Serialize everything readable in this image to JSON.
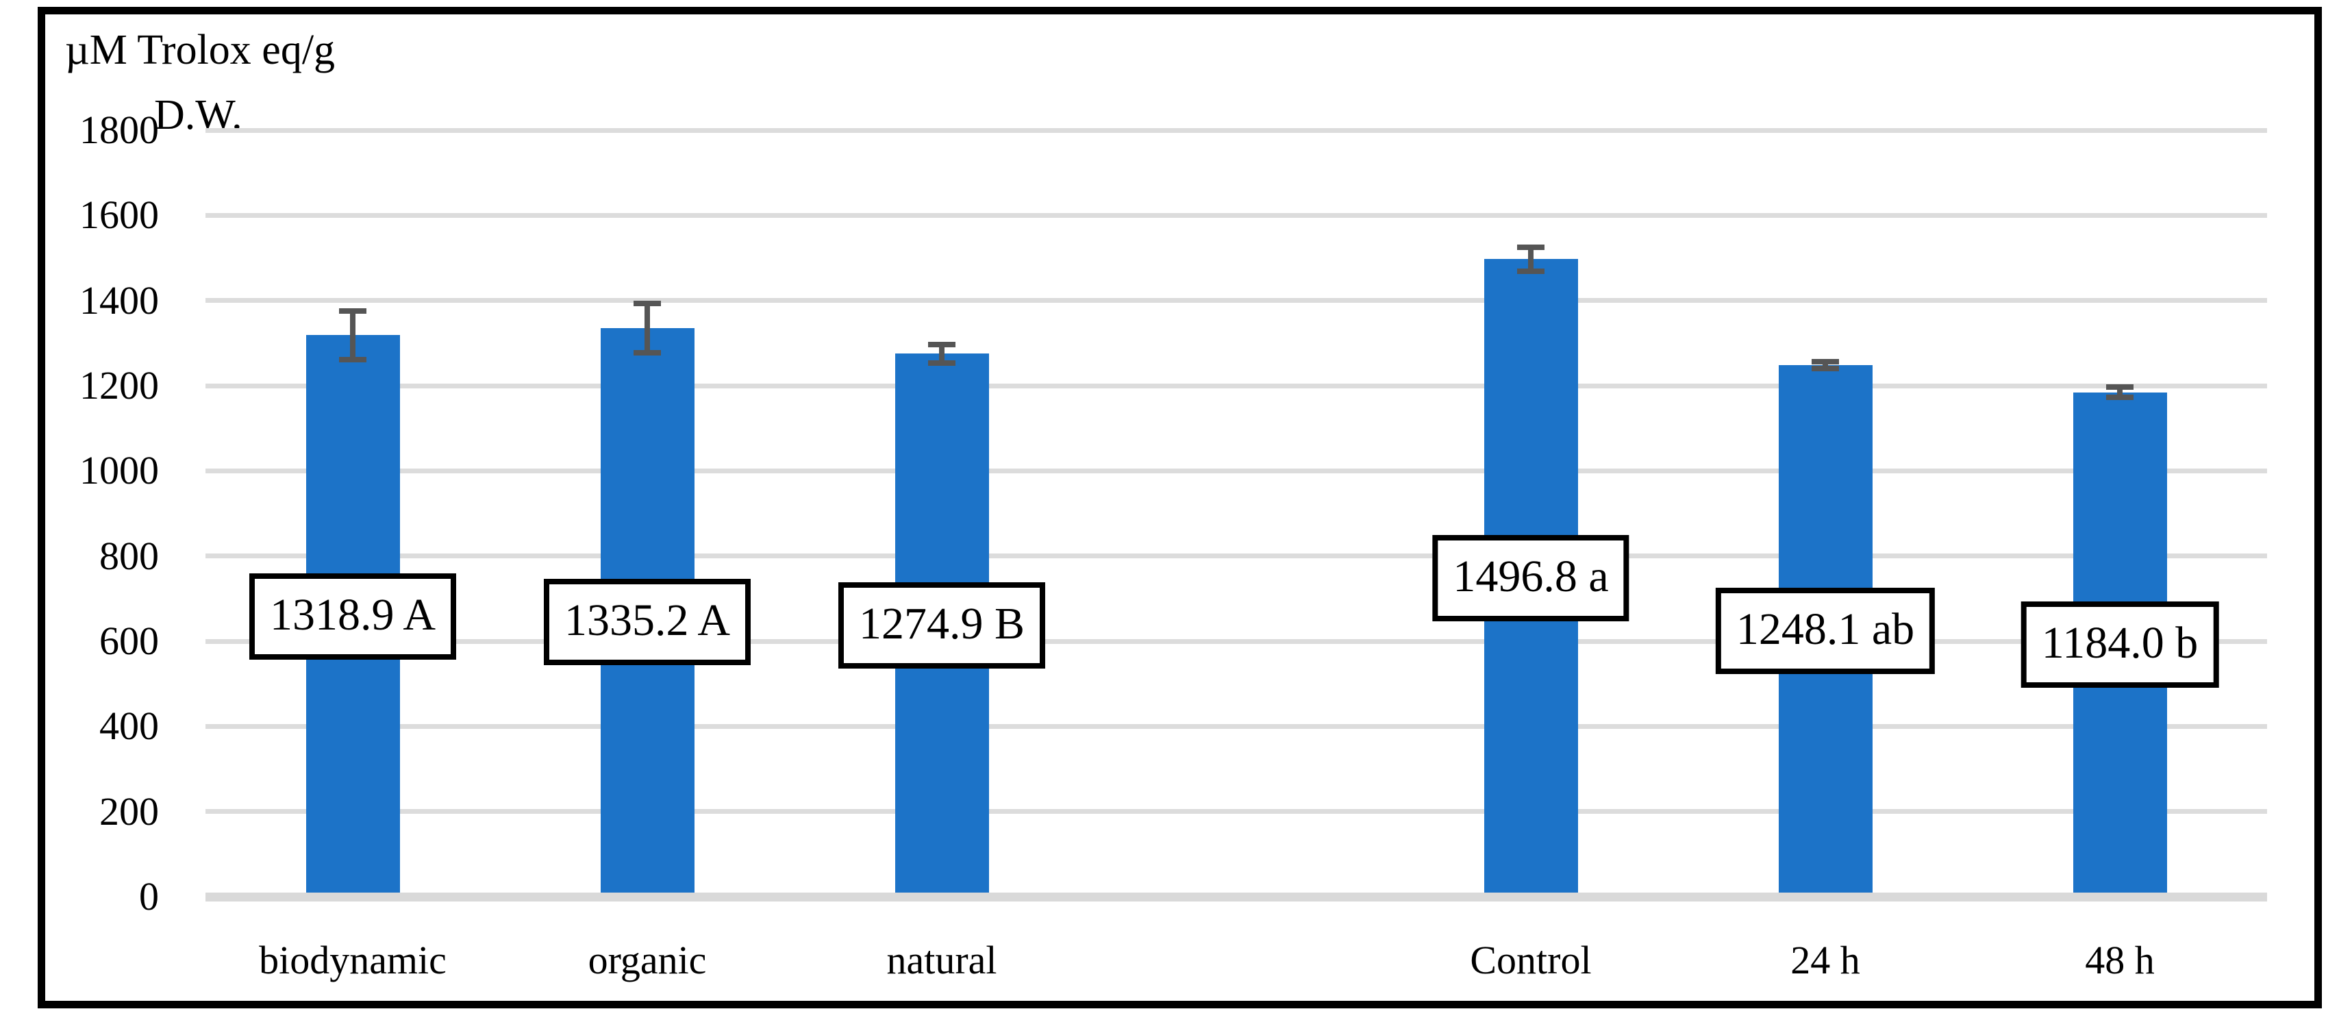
{
  "figure": {
    "axis_title_line1": "µM Trolox eq/g",
    "axis_title_line2": "D.W.",
    "colors": {
      "bar": "#1C73C8",
      "error_bar": "#555555",
      "gridline": "#DCDCDC",
      "axis_line": "#D9D9D9",
      "frame_border": "#000000",
      "label_box_bg": "#FFFFFF",
      "label_box_border": "#000000",
      "text": "#000000"
    }
  },
  "chart_data": {
    "type": "bar",
    "title": "",
    "ylabel": "µM Trolox eq/g D.W.",
    "xlabel": "",
    "ylim": [
      0,
      1800
    ],
    "yticks": [
      0,
      200,
      400,
      600,
      800,
      1000,
      1200,
      1400,
      1600,
      1800
    ],
    "grid": true,
    "legend": "none",
    "categories": [
      "biodynamic",
      "organic",
      "natural",
      "Control",
      "24 h",
      "48 h"
    ],
    "values": [
      1318.9,
      1335.2,
      1274.9,
      1496.8,
      1248.1,
      1184.0
    ],
    "errors": [
      57,
      58,
      22,
      28,
      8,
      12
    ],
    "data_labels": [
      "1318.9 A",
      "1335.2 A",
      "1274.9 B",
      "1496.8 a",
      "1248.1 ab",
      "1184.0 b"
    ],
    "label_center_values": [
      658,
      645,
      637,
      748,
      624,
      592
    ],
    "category_slots": [
      0,
      1,
      2,
      4,
      5,
      6
    ],
    "num_slots": 7,
    "gap_after_category_index": 2
  }
}
